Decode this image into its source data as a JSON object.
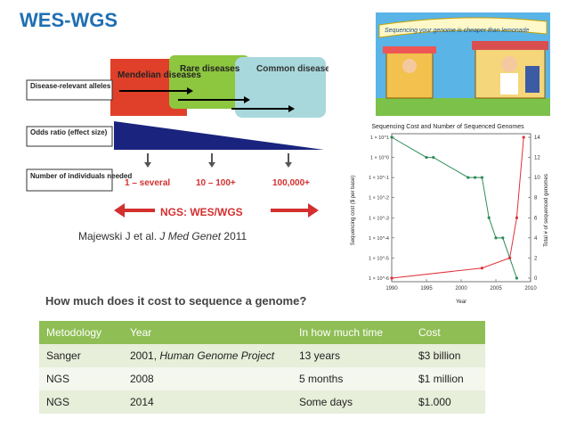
{
  "slide": {
    "title": "WES-WGS",
    "question": "How much does it cost to sequence a genome?"
  },
  "figure1": {
    "row_labels": [
      "Disease-relevant alleles",
      "Odds ratio (effect size)",
      "Number of individuals needed"
    ],
    "boxes": [
      "Mendelian diseases",
      "Rare diseases",
      "Common diseases"
    ],
    "sample_labels": [
      "1 – several",
      "10 – 100+",
      "100,000+"
    ],
    "banner": "NGS: WES/WGS",
    "colors": {
      "mendelian": "#e0402a",
      "rare": "#8dc63f",
      "common": "#a8d8dc",
      "wedge": "#1a237e",
      "arrow": "#d32f2f"
    }
  },
  "citation": {
    "text": "Majewski J et al.",
    "journal": "J Med Genet",
    "year": "2011"
  },
  "cartoon": {
    "banner_text": "Sequencing your genome is cheaper than lemonade"
  },
  "seq_chart": {
    "title": "Sequencing Cost and Number of Sequenced Genomes"
  },
  "chart_data": {
    "type": "line",
    "title": "Sequencing Cost and Number of Sequenced Genomes",
    "xlabel": "Year",
    "ylabel": "Sequencing cost ($ per base)",
    "ylabel_right": "Total # of sequenced genomes",
    "xlim": [
      1990,
      2010
    ],
    "x_ticks": [
      "1990",
      "1995",
      "2000",
      "2005",
      "2010"
    ],
    "y_ticks": [
      "1 × 10^1",
      "1 × 10^0",
      "1 × 10^-1",
      "1 × 10^-2",
      "1 × 10^-3",
      "1 × 10^-4",
      "1 × 10^-5",
      "1 × 10^-6"
    ],
    "y_right_ticks": [
      "0",
      "2",
      "4",
      "6",
      "8",
      "10",
      "12",
      "14"
    ],
    "y_log": true,
    "ylim": [
      1e-06,
      10
    ],
    "y2lim": [
      0,
      14
    ],
    "series": [
      {
        "name": "Sequencing cost",
        "axis": "left",
        "color": "#2e8b57",
        "x": [
          1990,
          1995,
          1996,
          2001,
          2002,
          2003,
          2004,
          2005,
          2006,
          2007,
          2008
        ],
        "y": [
          10,
          1,
          1,
          0.1,
          0.1,
          0.1,
          0.001,
          0.0001,
          0.0001,
          1e-05,
          1e-06
        ]
      },
      {
        "name": "Number of sequenced genomes",
        "axis": "right",
        "color": "#e0303a",
        "x": [
          1990,
          2003,
          2007,
          2008,
          2009
        ],
        "y": [
          0,
          1,
          2,
          6,
          14
        ]
      }
    ]
  },
  "table": {
    "headers": [
      "Metodology",
      "Year",
      "In how much time",
      "Cost"
    ],
    "rows": [
      {
        "method": "Sanger",
        "year": "2001,",
        "year_note": "Human Genome Project",
        "time": "13 years",
        "cost": "$3 billion"
      },
      {
        "method": "NGS",
        "year": "2008",
        "year_note": "",
        "time": "5 months",
        "cost": "$1 million"
      },
      {
        "method": "NGS",
        "year": "2014",
        "year_note": "",
        "time": "Some days",
        "cost": "$1.000"
      }
    ]
  }
}
